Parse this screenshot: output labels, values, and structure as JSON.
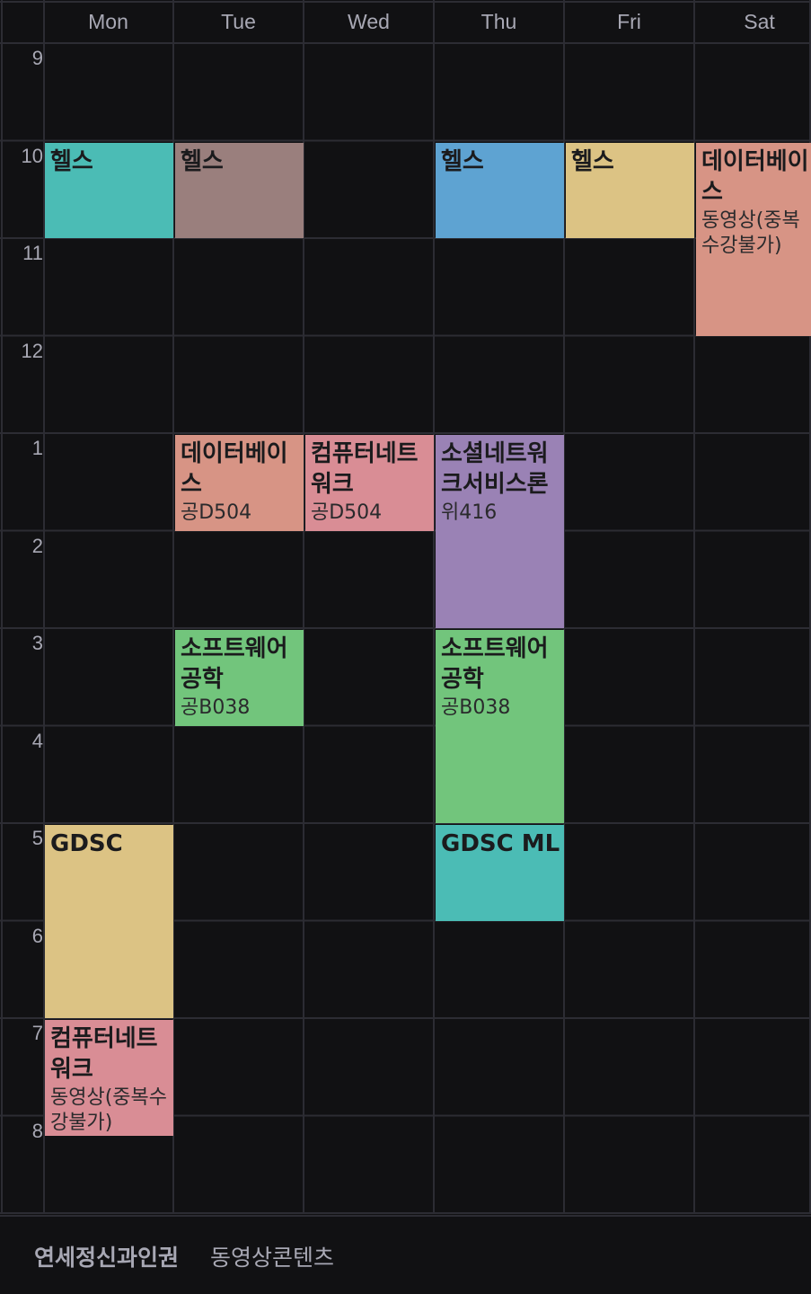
{
  "days": [
    "Mon",
    "Tue",
    "Wed",
    "Thu",
    "Fri",
    "Sat"
  ],
  "hours": [
    "9",
    "10",
    "11",
    "12",
    "1",
    "2",
    "3",
    "4",
    "5",
    "6",
    "7",
    "8"
  ],
  "colors": {
    "background": "#111113",
    "grid_line": "#2c2c33",
    "text_muted": "#a8a8b4"
  },
  "events": [
    {
      "title": "헬스",
      "room": "",
      "day": "Mon",
      "start": "10:00",
      "end": "11:00",
      "color": "#4bbcb5"
    },
    {
      "title": "헬스",
      "room": "",
      "day": "Tue",
      "start": "10:00",
      "end": "11:00",
      "color": "#9a7f7d"
    },
    {
      "title": "헬스",
      "room": "",
      "day": "Thu",
      "start": "10:00",
      "end": "11:00",
      "color": "#5ea3d2"
    },
    {
      "title": "헬스",
      "room": "",
      "day": "Fri",
      "start": "10:00",
      "end": "11:00",
      "color": "#dcc384"
    },
    {
      "title": "데이터베이스",
      "room": "동영상(중복수강불가)",
      "day": "Sat",
      "start": "10:00",
      "end": "12:00",
      "color": "#d79485"
    },
    {
      "title": "데이터베이스",
      "room": "공D504",
      "day": "Tue",
      "start": "1:00",
      "end": "2:00",
      "color": "#d79485"
    },
    {
      "title": "컴퓨터네트워크",
      "room": "공D504",
      "day": "Wed",
      "start": "1:00",
      "end": "2:00",
      "color": "#d98d95"
    },
    {
      "title": "소셜네트워크서비스론",
      "room": "위416",
      "day": "Thu",
      "start": "1:00",
      "end": "3:00",
      "color": "#9a82b5"
    },
    {
      "title": "소프트웨어공학",
      "room": "공B038",
      "day": "Tue",
      "start": "3:00",
      "end": "4:00",
      "color": "#72c57c"
    },
    {
      "title": "소프트웨어공학",
      "room": "공B038",
      "day": "Thu",
      "start": "3:00",
      "end": "5:00",
      "color": "#72c57c"
    },
    {
      "title": "GDSC",
      "room": "",
      "day": "Mon",
      "start": "5:00",
      "end": "7:00",
      "color": "#dcc384"
    },
    {
      "title": "GDSC ML",
      "room": "",
      "day": "Thu",
      "start": "5:00",
      "end": "6:00",
      "color": "#4bbcb5"
    },
    {
      "title": "컴퓨터네트워크",
      "room": "동영상(중복수강불가)",
      "day": "Mon",
      "start": "7:00",
      "end": "9:00",
      "color": "#d98d95"
    }
  ],
  "footer": {
    "title": "연세정신과인권",
    "link": "동영상콘텐츠"
  }
}
